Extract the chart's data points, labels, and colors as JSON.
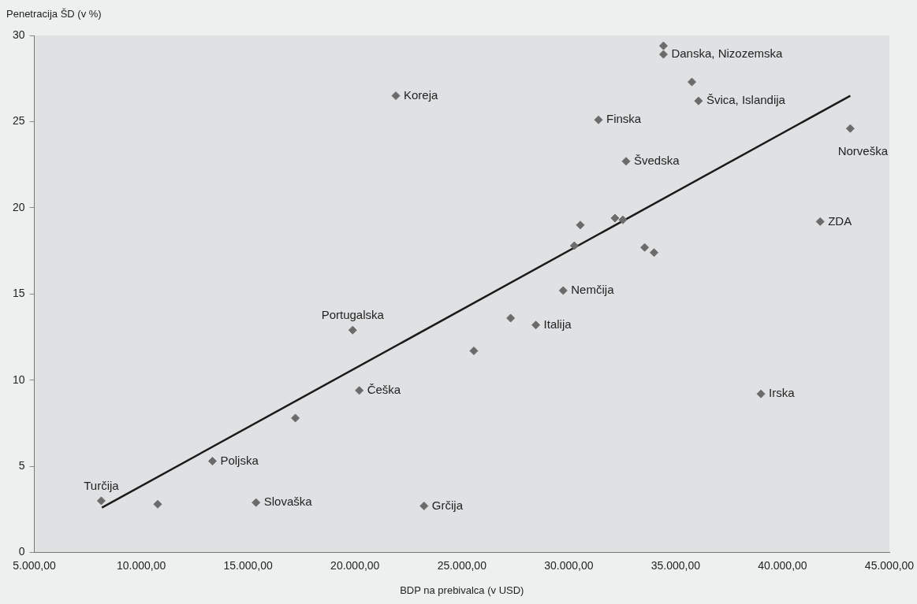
{
  "chart_data": {
    "type": "scatter",
    "xlabel": "BDP na prebivalca (v USD)",
    "ylabel": "Penetracija ŠD (v %)",
    "xlim": [
      5000,
      45000
    ],
    "ylim": [
      0,
      30
    ],
    "xticks": [
      {
        "value": 5000,
        "label": "5.000,00"
      },
      {
        "value": 10000,
        "label": "10.000,00"
      },
      {
        "value": 15000,
        "label": "15.000,00"
      },
      {
        "value": 20000,
        "label": "20.000,00"
      },
      {
        "value": 25000,
        "label": "25.000,00"
      },
      {
        "value": 30000,
        "label": "30.000,00"
      },
      {
        "value": 35000,
        "label": "35.000,00"
      },
      {
        "value": 40000,
        "label": "40.000,00"
      },
      {
        "value": 45000,
        "label": "45.000,00"
      }
    ],
    "yticks": [
      0,
      5,
      10,
      15,
      20,
      25,
      30
    ],
    "grid": false,
    "legend": false,
    "marker": "diamond",
    "series": [
      {
        "color": "#6b6b6b",
        "x": [
          8130,
          10770,
          15370,
          23230,
          13330,
          17210,
          20200,
          19890,
          27280,
          28460,
          25560,
          38990,
          34430,
          34430,
          35760,
          36070,
          31390,
          32680,
          43170,
          41760,
          30540,
          32160,
          32530,
          30260,
          33550,
          33990,
          29740,
          21910
        ],
        "values": [
          3.0,
          2.8,
          2.9,
          2.7,
          5.3,
          7.8,
          9.4,
          12.9,
          13.6,
          13.2,
          11.7,
          9.2,
          29.4,
          28.9,
          27.3,
          26.2,
          25.1,
          22.7,
          24.6,
          19.2,
          19.0,
          19.4,
          19.3,
          17.8,
          17.7,
          17.4,
          15.2,
          26.5
        ]
      },
      {
        "type": "line",
        "color": "#1a1a1a",
        "marker": "none",
        "line_style": "solid",
        "x": [
          8160,
          43170
        ],
        "values": [
          2.6,
          26.5
        ]
      }
    ],
    "annotations": [
      {
        "text": "Turčija",
        "x": 8130,
        "y": 3.0
      },
      {
        "text": "Slovaška",
        "x": 15370,
        "y": 2.9
      },
      {
        "text": "Grčija",
        "x": 23230,
        "y": 2.7
      },
      {
        "text": "Poljska",
        "x": 13330,
        "y": 5.3
      },
      {
        "text": "Češka",
        "x": 20200,
        "y": 9.4
      },
      {
        "text": "Portugalska",
        "x": 19890,
        "y": 12.9
      },
      {
        "text": "Italija",
        "x": 28460,
        "y": 13.2
      },
      {
        "text": "Irska",
        "x": 38990,
        "y": 9.2
      },
      {
        "text": "Danska, Nizozemska",
        "x": 34430,
        "y": 28.9
      },
      {
        "text": "Švica, Islandija",
        "x": 36070,
        "y": 26.2
      },
      {
        "text": "Finska",
        "x": 31390,
        "y": 25.1
      },
      {
        "text": "Švedska",
        "x": 32680,
        "y": 22.7
      },
      {
        "text": "Norveška",
        "x": 43170,
        "y": 24.6
      },
      {
        "text": "ZDA",
        "x": 41760,
        "y": 19.2
      },
      {
        "text": "Nemčija",
        "x": 29740,
        "y": 15.2
      },
      {
        "text": "Koreja",
        "x": 21910,
        "y": 26.5
      }
    ]
  }
}
